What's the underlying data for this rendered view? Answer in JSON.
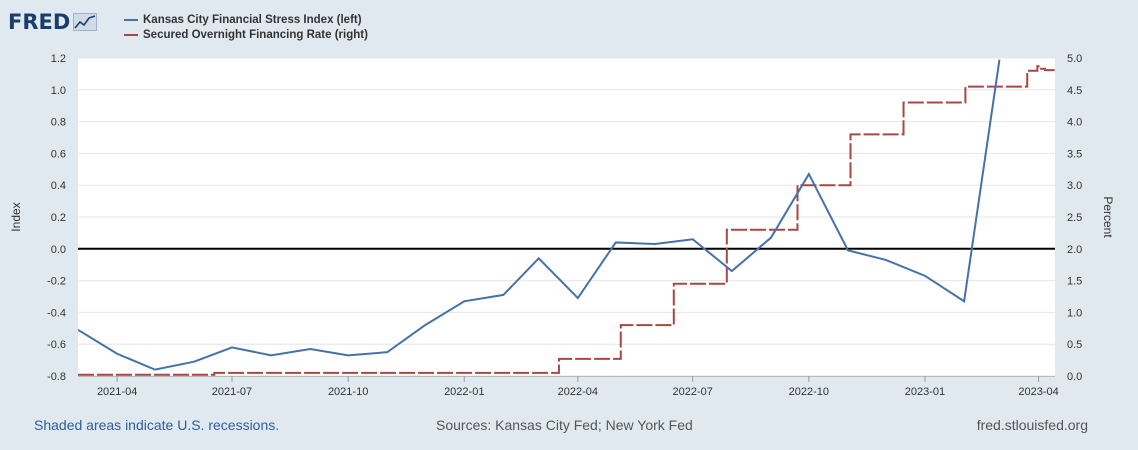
{
  "brand": {
    "logo_text": "FRED"
  },
  "legend": [
    {
      "label": "Kansas City Financial Stress Index (left)",
      "color": "#4572a7"
    },
    {
      "label": "Secured Overnight Financing Rate (right)",
      "color": "#aa4643"
    }
  ],
  "footer": {
    "recessions": "Shaded areas indicate U.S. recessions.",
    "sources": "Sources: Kansas City Fed; New York Fed",
    "site": "fred.stlouisfed.org"
  },
  "chart_data": {
    "type": "line",
    "xlim": [
      "2021-03-01",
      "2023-04-14"
    ],
    "x_ticks": [
      {
        "date": "2021-04-01",
        "label": "2021-04"
      },
      {
        "date": "2021-07-01",
        "label": "2021-07"
      },
      {
        "date": "2021-10-01",
        "label": "2021-10"
      },
      {
        "date": "2022-01-01",
        "label": "2022-01"
      },
      {
        "date": "2022-04-01",
        "label": "2022-04"
      },
      {
        "date": "2022-07-01",
        "label": "2022-07"
      },
      {
        "date": "2022-10-01",
        "label": "2022-10"
      },
      {
        "date": "2023-01-01",
        "label": "2023-01"
      },
      {
        "date": "2023-04-01",
        "label": "2023-04"
      }
    ],
    "left_axis": {
      "label": "Index",
      "ylim": [
        -0.8,
        1.2
      ],
      "ticks": [
        "-0.8",
        "-0.6",
        "-0.4",
        "-0.2",
        "0.0",
        "0.2",
        "0.4",
        "0.6",
        "0.8",
        "1.0",
        "1.2"
      ]
    },
    "right_axis": {
      "label": "Percent",
      "ylim": [
        0,
        5
      ],
      "ticks": [
        "0.0",
        "0.5",
        "1.0",
        "1.5",
        "2.0",
        "2.5",
        "3.0",
        "3.5",
        "4.0",
        "4.5",
        "5.0"
      ]
    },
    "zero_line": 0,
    "grid": "horizontal",
    "series": [
      {
        "name": "Kansas City Financial Stress Index (left)",
        "axis": "left",
        "color": "#4572a7",
        "points": [
          [
            "2021-03-01",
            -0.51
          ],
          [
            "2021-04-01",
            -0.66
          ],
          [
            "2021-05-01",
            -0.76
          ],
          [
            "2021-06-01",
            -0.71
          ],
          [
            "2021-07-01",
            -0.62
          ],
          [
            "2021-08-01",
            -0.67
          ],
          [
            "2021-09-01",
            -0.63
          ],
          [
            "2021-10-01",
            -0.67
          ],
          [
            "2021-11-01",
            -0.65
          ],
          [
            "2021-12-01",
            -0.48
          ],
          [
            "2022-01-01",
            -0.33
          ],
          [
            "2022-02-01",
            -0.29
          ],
          [
            "2022-03-01",
            -0.06
          ],
          [
            "2022-04-01",
            -0.31
          ],
          [
            "2022-05-01",
            0.04
          ],
          [
            "2022-06-01",
            0.03
          ],
          [
            "2022-07-01",
            0.06
          ],
          [
            "2022-08-01",
            -0.14
          ],
          [
            "2022-09-01",
            0.07
          ],
          [
            "2022-10-01",
            0.47
          ],
          [
            "2022-11-01",
            -0.01
          ],
          [
            "2022-12-01",
            -0.07
          ],
          [
            "2023-01-01",
            -0.17
          ],
          [
            "2023-02-01",
            -0.33
          ],
          [
            "2023-03-01",
            1.19
          ]
        ]
      },
      {
        "name": "Secured Overnight Financing Rate (right)",
        "axis": "right",
        "color": "#aa4643",
        "dashed": true,
        "steps": [
          [
            "2021-03-01",
            0.02
          ],
          [
            "2021-06-17",
            0.05
          ],
          [
            "2022-03-17",
            0.27
          ],
          [
            "2022-05-05",
            0.8
          ],
          [
            "2022-06-16",
            1.45
          ],
          [
            "2022-07-28",
            2.3
          ],
          [
            "2022-09-22",
            3.0
          ],
          [
            "2022-11-03",
            3.8
          ],
          [
            "2022-12-15",
            4.3
          ],
          [
            "2023-02-02",
            4.55
          ],
          [
            "2023-03-23",
            4.8
          ],
          [
            "2023-03-31",
            4.87
          ],
          [
            "2023-04-03",
            4.83
          ],
          [
            "2023-04-06",
            4.81
          ],
          [
            "2023-04-14",
            4.8
          ]
        ]
      }
    ]
  }
}
